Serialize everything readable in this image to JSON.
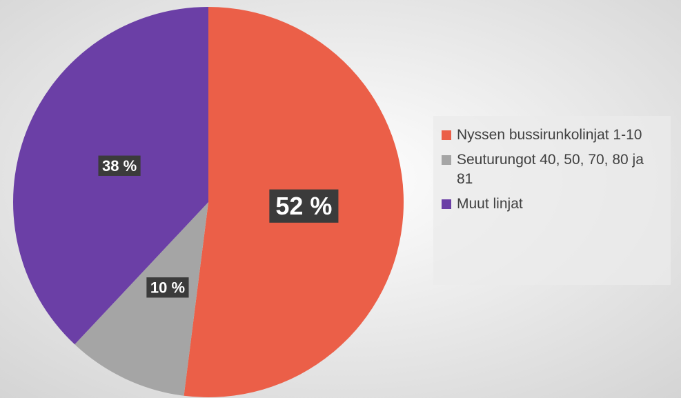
{
  "chart_data": {
    "type": "pie",
    "categories": [
      "Nyssen bussirunkolinjat 1-10",
      "Seuturungot 40, 50, 70, 80 ja 81",
      "Muut linjat"
    ],
    "values": [
      52,
      10,
      38
    ],
    "value_labels": [
      "52 %",
      "10 %",
      "38 %"
    ],
    "colors": [
      "#eb5f48",
      "#a5a5a5",
      "#6b3fa6"
    ],
    "legend": "right"
  }
}
